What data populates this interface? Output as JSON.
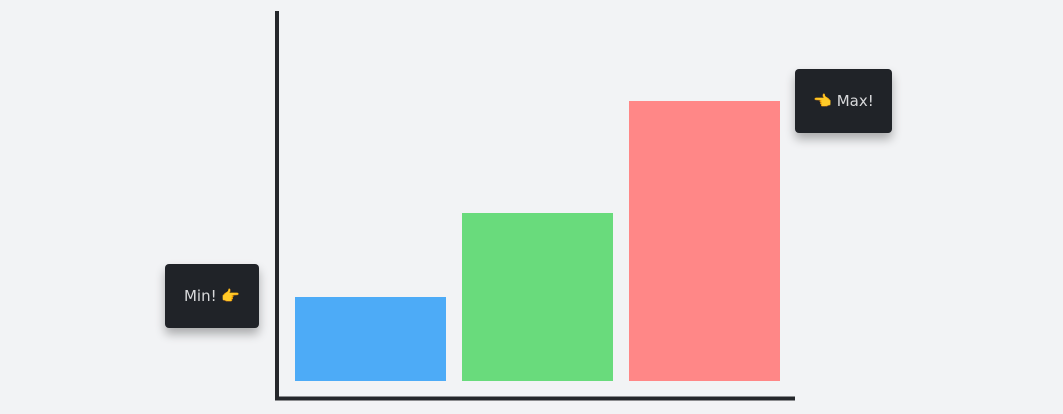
{
  "chart_data": {
    "type": "bar",
    "categories": [
      "",
      "",
      ""
    ],
    "values": [
      3,
      6,
      10
    ],
    "colors": [
      "#4dabf7",
      "#69db7c",
      "#ff8787"
    ],
    "ylim": [
      0,
      10
    ],
    "grid": false,
    "title": "",
    "xlabel": "",
    "ylabel": "",
    "annotations": {
      "min_label": "Min! 👉",
      "max_label": "👈 Max!"
    }
  },
  "colors": {
    "axis": "#25272b",
    "tooltip_bg": "#202328",
    "background": "#f2f3f5"
  }
}
